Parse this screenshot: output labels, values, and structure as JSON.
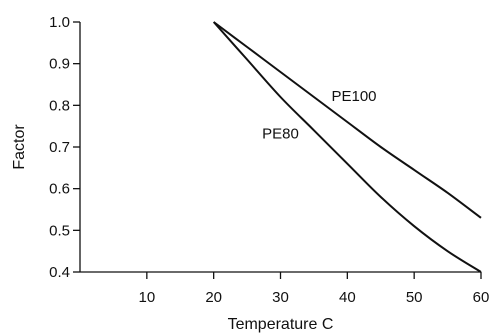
{
  "chart_data": {
    "type": "line",
    "title": "",
    "xlabel": "Temperature C",
    "ylabel": "Factor",
    "xlim": [
      0,
      60
    ],
    "ylim": [
      0.4,
      1.0
    ],
    "xticks": [
      10,
      20,
      30,
      40,
      50,
      60
    ],
    "yticks": [
      0.4,
      0.5,
      0.6,
      0.7,
      0.8,
      0.9,
      1.0
    ],
    "xtick_labels": [
      "10",
      "20",
      "30",
      "40",
      "50",
      "60"
    ],
    "ytick_labels": [
      "0.4",
      "0.5",
      "0.6",
      "0.7",
      "0.8",
      "0.9",
      "1.0"
    ],
    "grid": false,
    "series": [
      {
        "name": "PE100",
        "x": [
          20,
          25,
          30,
          35,
          40,
          45,
          50,
          55,
          60
        ],
        "y": [
          1.0,
          0.94,
          0.88,
          0.82,
          0.76,
          0.7,
          0.645,
          0.59,
          0.53
        ],
        "label_at": [
          41,
          0.81
        ]
      },
      {
        "name": "PE80",
        "x": [
          20,
          25,
          30,
          35,
          40,
          45,
          50,
          55,
          60
        ],
        "y": [
          1.0,
          0.91,
          0.82,
          0.74,
          0.66,
          0.58,
          0.51,
          0.45,
          0.4
        ],
        "label_at": [
          30,
          0.72
        ]
      }
    ],
    "colors": {
      "line": "#111111",
      "axis": "#111111"
    }
  }
}
